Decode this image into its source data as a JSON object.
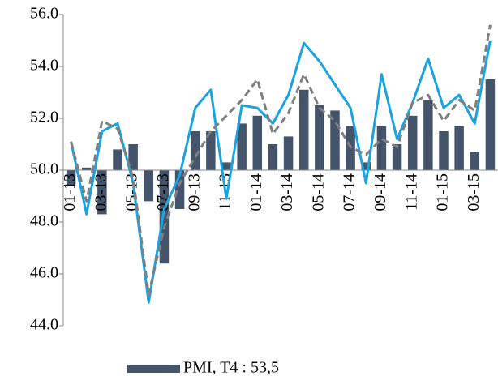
{
  "chart_data": {
    "type": "bar",
    "categories": [
      "01-13",
      null,
      "03-13",
      null,
      "05-13",
      null,
      "07-13",
      null,
      "09-13",
      null,
      "11-13",
      null,
      "01-14",
      null,
      "03-14",
      null,
      "05-14",
      null,
      "07-14",
      null,
      "09-14",
      null,
      "11-14",
      null,
      "01-15",
      null,
      "03-15",
      null
    ],
    "series": [
      {
        "name": "PMI, T4 : 53,5",
        "type": "bar",
        "color": "#44546a",
        "values": [
          49.4,
          50.1,
          48.3,
          50.8,
          51.0,
          48.8,
          46.4,
          48.5,
          51.5,
          51.5,
          50.3,
          51.8,
          52.1,
          51.0,
          51.3,
          53.1,
          52.5,
          52.3,
          51.7,
          50.3,
          51.7,
          51.0,
          52.1,
          52.7,
          51.5,
          51.7,
          50.7,
          53.5
        ]
      },
      {
        "type": "line",
        "color": "#1aa3e0",
        "dashed": false,
        "values": [
          51.1,
          48.3,
          51.5,
          51.8,
          49.5,
          44.9,
          48.5,
          49.8,
          52.4,
          53.1,
          48.9,
          52.5,
          52.4,
          51.8,
          52.9,
          54.9,
          54.2,
          53.3,
          52.4,
          49.5,
          53.7,
          51.2,
          52.6,
          54.3,
          52.4,
          52.9,
          51.8,
          55.0
        ]
      },
      {
        "type": "line",
        "color": "#7f7f7f",
        "dashed": true,
        "values": [
          51.1,
          48.8,
          51.9,
          51.6,
          49.7,
          45.2,
          47.8,
          49.5,
          50.5,
          51.5,
          52.1,
          52.7,
          53.5,
          51.4,
          52.2,
          53.7,
          52.4,
          51.9,
          50.9,
          50.6,
          51.2,
          50.9,
          52.6,
          52.9,
          51.9,
          52.7,
          52.3,
          55.6
        ]
      }
    ],
    "ylim": [
      44,
      56
    ],
    "yticks": [
      {
        "value": 44,
        "label": "44.0"
      },
      {
        "value": 46,
        "label": "46.0"
      },
      {
        "value": 48,
        "label": "48.0"
      },
      {
        "value": 50,
        "label": "50.0"
      },
      {
        "value": 52,
        "label": "52.0"
      },
      {
        "value": 54,
        "label": "54.0"
      },
      {
        "value": 56,
        "label": "56.0"
      }
    ],
    "baseline": 50,
    "grid": false,
    "legend": "bottom"
  }
}
